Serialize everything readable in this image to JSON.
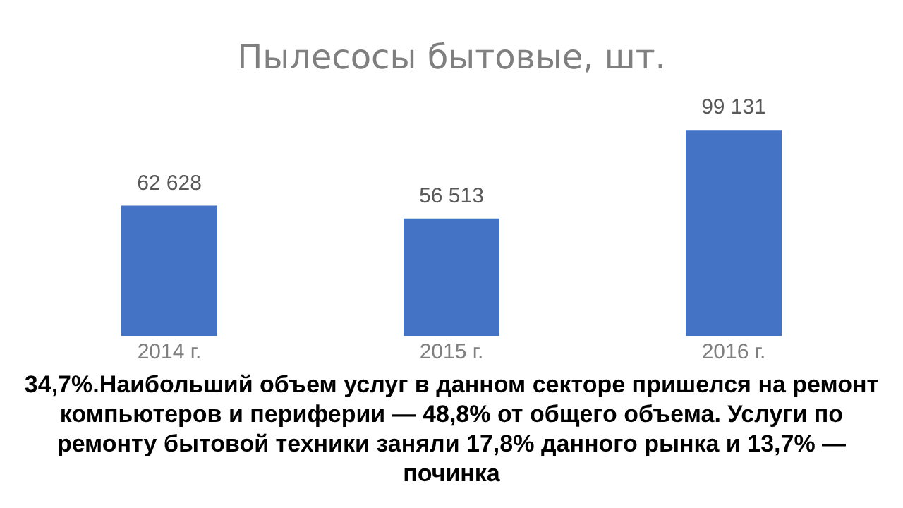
{
  "chart_data": {
    "type": "bar",
    "title": "Пылесосы бытовые, шт.",
    "categories": [
      "2014 г.",
      "2015 г.",
      "2016 г."
    ],
    "values": [
      62628,
      56513,
      99131
    ],
    "value_labels": [
      "62 628",
      "56 513",
      "99 131"
    ],
    "color": "#4472c4",
    "grid": false,
    "legend": false,
    "annotations": [
      "34,7%.Наибольший объем услуг в данном секторе пришелся на ремонт компьютеров и периферии — 48,8% от общего объема. Услуги по ремонту бытовой техники заняли 17,8% данного рынка и 13,7% — починка"
    ]
  }
}
